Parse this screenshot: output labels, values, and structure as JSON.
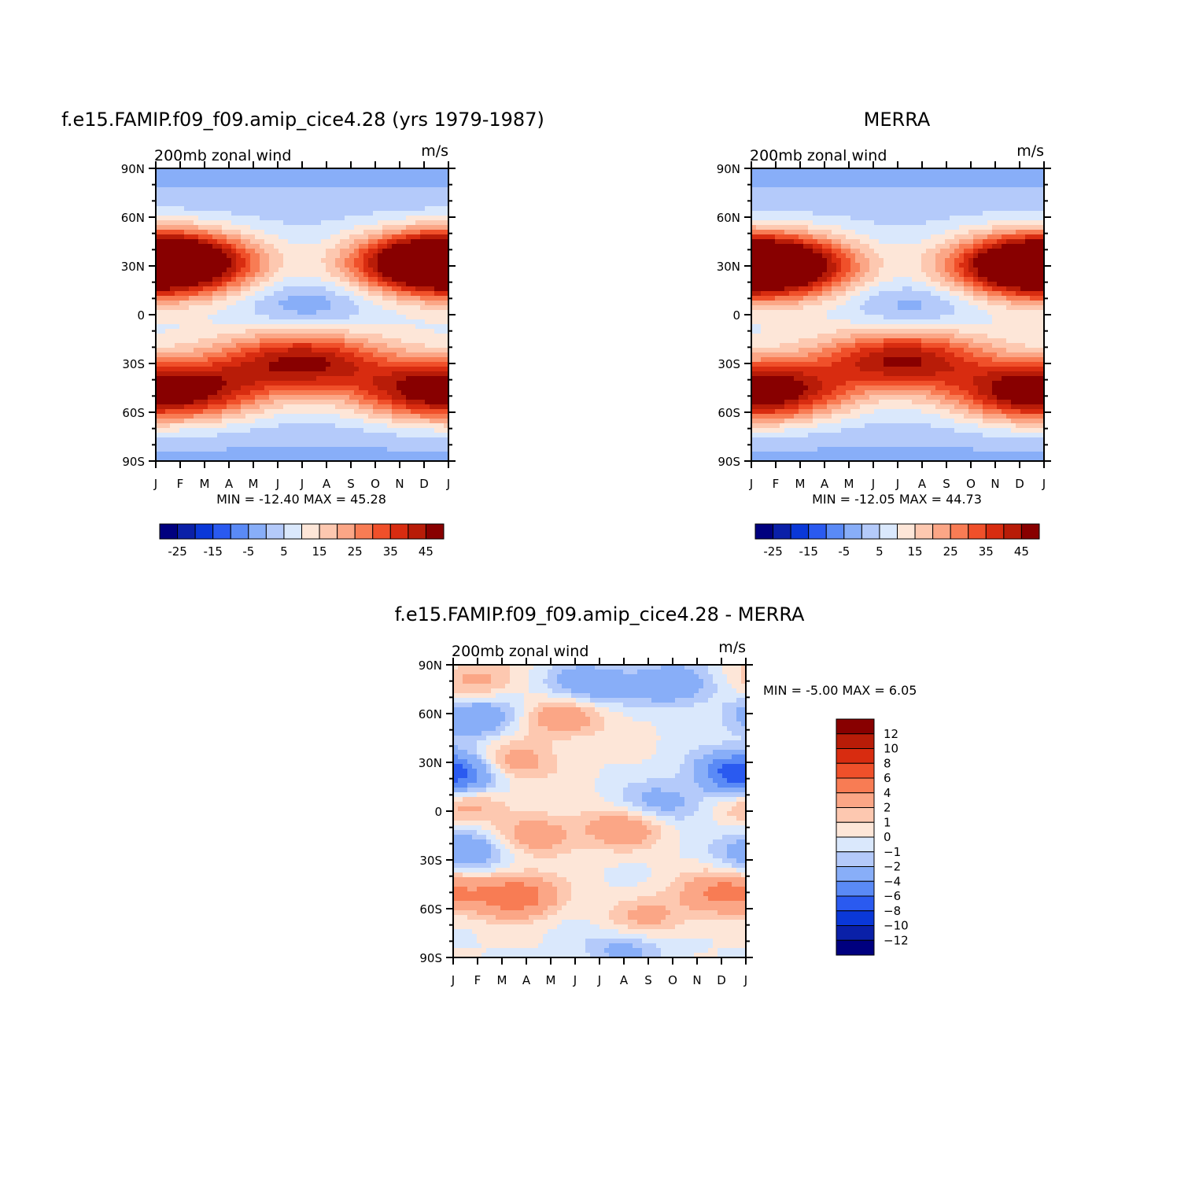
{
  "palette_a": [
    "#00007f",
    "#0a20a8",
    "#0a38d8",
    "#2a5af0",
    "#5a8af6",
    "#88aef8",
    "#b4cafa",
    "#dae8fc",
    "#fde6d8",
    "#fdc8b0",
    "#fba686",
    "#f87c54",
    "#f0502a",
    "#d82c10",
    "#b81c08",
    "#880000"
  ],
  "palette_diff": [
    "#00007f",
    "#0a20a8",
    "#0a38d8",
    "#2a5af0",
    "#5a8af6",
    "#88aef8",
    "#b4cafa",
    "#dae8fc",
    "#fde6d8",
    "#fdc8b0",
    "#fba686",
    "#f87c54",
    "#f0502a",
    "#d82c10",
    "#b81c08",
    "#880000"
  ],
  "chart_data": [
    {
      "type": "heatmap",
      "title": "f.e15.FAMIP.f09_f09.amip_cice4.28 (yrs 1979-1987)",
      "subtitle": "200mb zonal wind",
      "units": "m/s",
      "x_ticklabels": [
        "J",
        "F",
        "M",
        "A",
        "M",
        "J",
        "J",
        "A",
        "S",
        "O",
        "N",
        "D",
        "J"
      ],
      "y_ticklabels": [
        "90N",
        "60N",
        "30N",
        "0",
        "30S",
        "60S",
        "90S"
      ],
      "stats": "MIN = -12.40 MAX =  45.28",
      "colorbar_labels": [
        "-25",
        "-15",
        "-5",
        "5",
        "15",
        "25",
        "35",
        "45"
      ],
      "features": [
        {
          "lat": 32,
          "lon": 0.6,
          "amp": 45
        },
        {
          "lat": 32,
          "lon": 11.4,
          "amp": 40
        },
        {
          "lat": -29,
          "lon": 6.0,
          "amp": 38
        },
        {
          "lat": -47,
          "lon": 1.5,
          "amp": 28
        },
        {
          "lat": -47,
          "lon": 11.0,
          "amp": 30
        },
        {
          "lat": 6,
          "lon": 6.2,
          "amp": -12
        }
      ]
    },
    {
      "type": "heatmap",
      "title": "MERRA",
      "subtitle": "200mb zonal wind",
      "units": "m/s",
      "x_ticklabels": [
        "J",
        "F",
        "M",
        "A",
        "M",
        "J",
        "J",
        "A",
        "S",
        "O",
        "N",
        "D",
        "J"
      ],
      "y_ticklabels": [
        "90N",
        "60N",
        "30N",
        "0",
        "30S",
        "60S",
        "90S"
      ],
      "stats": "MIN = -12.05 MAX =  44.73",
      "colorbar_labels": [
        "-25",
        "-15",
        "-5",
        "5",
        "15",
        "25",
        "35",
        "45"
      ],
      "features": [
        {
          "lat": 30,
          "lon": 0.8,
          "amp": 44
        },
        {
          "lat": 31,
          "lon": 11.4,
          "amp": 39
        },
        {
          "lat": -28,
          "lon": 6.2,
          "amp": 38
        },
        {
          "lat": -47,
          "lon": 1.0,
          "amp": 27
        },
        {
          "lat": -48,
          "lon": 11.2,
          "amp": 29
        },
        {
          "lat": 5,
          "lon": 6.5,
          "amp": -11
        }
      ]
    },
    {
      "type": "heatmap",
      "title": "f.e15.FAMIP.f09_f09.amip_cice4.28 - MERRA",
      "subtitle": "200mb zonal wind",
      "units": "m/s",
      "x_ticklabels": [
        "J",
        "F",
        "M",
        "A",
        "M",
        "J",
        "J",
        "A",
        "S",
        "O",
        "N",
        "D",
        "J"
      ],
      "y_ticklabels": [
        "90N",
        "60N",
        "30N",
        "0",
        "30S",
        "60S",
        "90S"
      ],
      "stats": "MIN =   -5.00 MAX =    6.05",
      "colorbar_labels": [
        "12",
        "10",
        "8",
        "6",
        "4",
        "2",
        "1",
        "0",
        "-1",
        "-2",
        "-4",
        "-6",
        "-8",
        "-10",
        "-12"
      ],
      "features": [
        {
          "lat": 80,
          "lon": 1.0,
          "amp": 2.5
        },
        {
          "lat": 58,
          "lon": 1.0,
          "amp": -4
        },
        {
          "lat": 78,
          "lon": 5.5,
          "amp": -4
        },
        {
          "lat": 78,
          "lon": 9.0,
          "amp": -4
        },
        {
          "lat": 58,
          "lon": 4.5,
          "amp": 3.5
        },
        {
          "lat": 30,
          "lon": 2.5,
          "amp": 3
        },
        {
          "lat": 20,
          "lon": 0.3,
          "amp": -4
        },
        {
          "lat": 25,
          "lon": 11.6,
          "amp": -5
        },
        {
          "lat": 5,
          "lon": 8.5,
          "amp": -3
        },
        {
          "lat": 5,
          "lon": 0.5,
          "amp": 3
        },
        {
          "lat": -10,
          "lon": 7.0,
          "amp": 3.5
        },
        {
          "lat": -15,
          "lon": 3.5,
          "amp": 3
        },
        {
          "lat": -25,
          "lon": 0.5,
          "amp": -4
        },
        {
          "lat": -52,
          "lon": 2.5,
          "amp": 6
        },
        {
          "lat": -50,
          "lon": 11.2,
          "amp": 5
        },
        {
          "lat": -65,
          "lon": 8.0,
          "amp": 2.5
        },
        {
          "lat": -85,
          "lon": 7.0,
          "amp": -2.5
        }
      ]
    }
  ]
}
